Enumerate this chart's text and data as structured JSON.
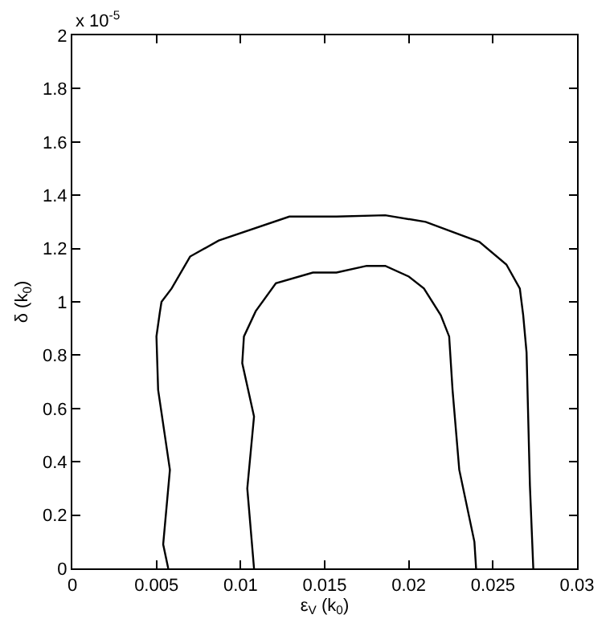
{
  "chart_data": {
    "type": "line",
    "xlabel": "ε$_{V}$ (k$_{0}$)",
    "ylabel": "δ (k$_{0}$)",
    "annotations": [
      "x 10$^{-5}$"
    ],
    "series": [
      {
        "color": "#000000",
        "x": [
          0.0057,
          0.0054,
          0.0058,
          0.0051,
          0.005,
          0.0052,
          0.0053,
          0.0059,
          0.007,
          0.0087,
          0.0129,
          0.0157,
          0.0186,
          0.021,
          0.0242,
          0.0258,
          0.0266,
          0.0268,
          0.027,
          0.0272,
          0.0274
        ],
        "values": [
          0,
          0.09,
          0.37,
          0.67,
          0.87,
          0.96,
          1.0,
          1.05,
          1.17,
          1.23,
          1.32,
          1.32,
          1.325,
          1.3,
          1.225,
          1.14,
          1.05,
          0.95,
          0.81,
          0.31,
          0
        ]
      },
      {
        "color": "#000000",
        "x": [
          0.0108,
          0.0104,
          0.0108,
          0.0101,
          0.0102,
          0.0109,
          0.0121,
          0.0143,
          0.0157,
          0.0175,
          0.0186,
          0.02,
          0.0209,
          0.0219,
          0.0224,
          0.0226,
          0.023,
          0.0239,
          0.024
        ],
        "values": [
          0,
          0.3,
          0.57,
          0.77,
          0.87,
          0.965,
          1.07,
          1.11,
          1.11,
          1.135,
          1.135,
          1.095,
          1.05,
          0.95,
          0.87,
          0.67,
          0.37,
          0.1,
          0
        ]
      }
    ],
    "xlim": [
      0,
      0.03
    ],
    "xticks": [
      0,
      0.005,
      0.01,
      0.015,
      0.02,
      0.025,
      0.03
    ],
    "ylim": [
      0,
      2
    ],
    "yticks": [
      0,
      0.2,
      0.4,
      0.6,
      0.8,
      1,
      1.2,
      1.4,
      1.6,
      1.8,
      2
    ],
    "marker": "none",
    "line_style": "solid"
  }
}
